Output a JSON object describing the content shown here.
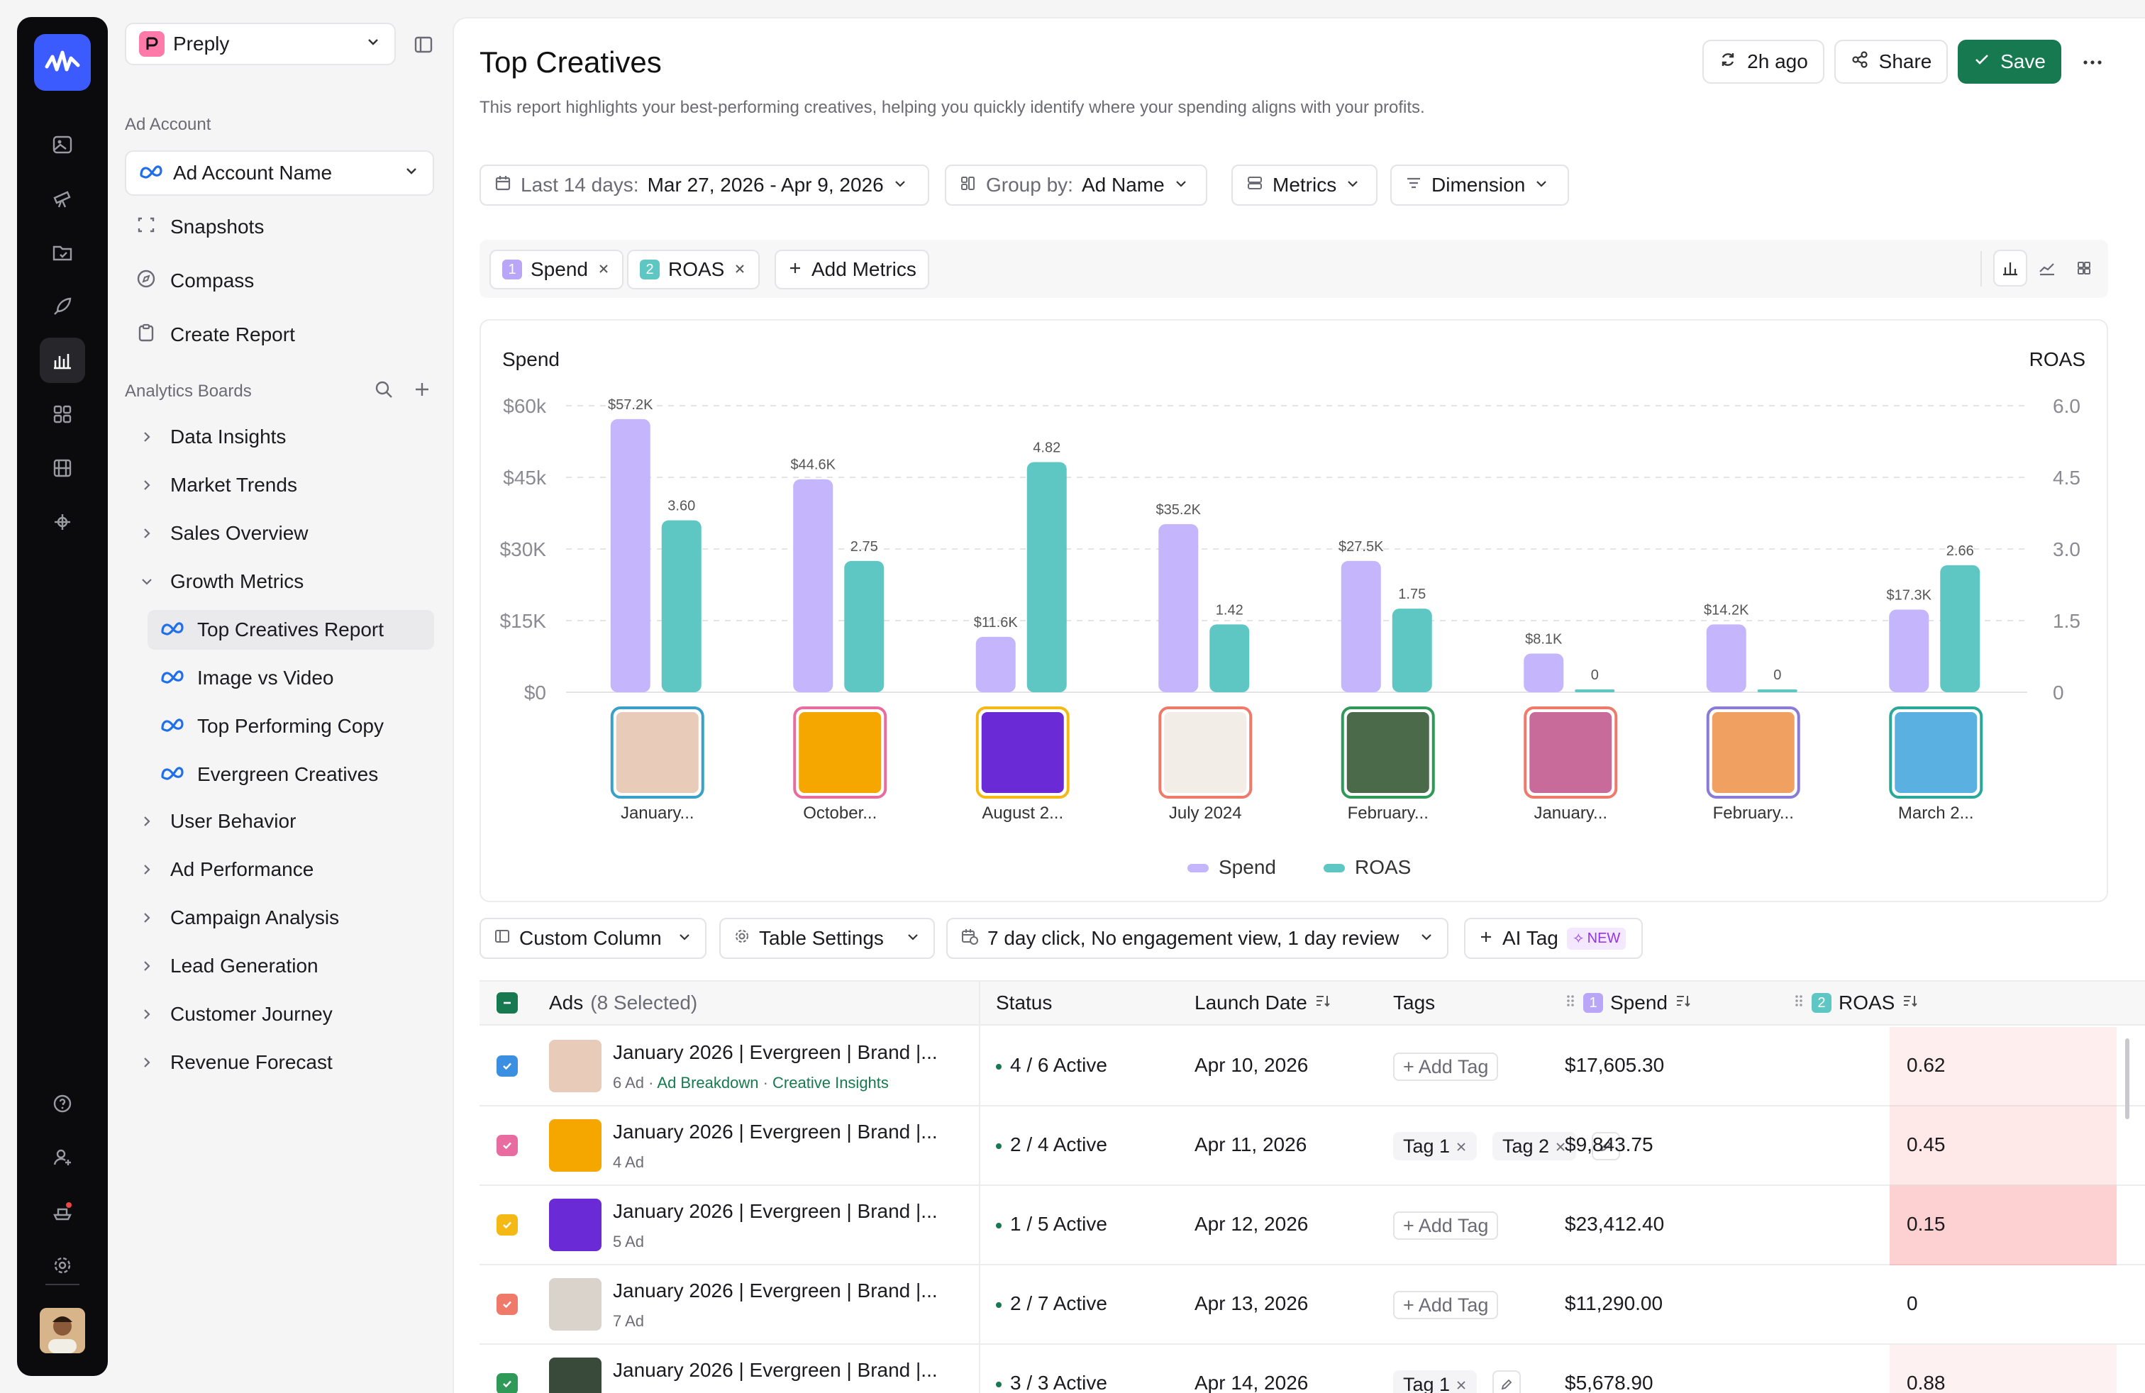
{
  "sidebar": {
    "workspace": "Preply",
    "ad_account_label": "Ad Account",
    "ad_account_value": "Ad Account Name",
    "nav": [
      "Snapshots",
      "Compass",
      "Create Report"
    ],
    "boards_label": "Analytics Boards",
    "boards": [
      "Data Insights",
      "Market Trends",
      "Sales Overview",
      "Growth Metrics"
    ],
    "growth_items": [
      "Top Creatives Report",
      "Image vs Video",
      "Top Performing Copy",
      "Evergreen Creatives"
    ],
    "boards_after": [
      "User Behavior",
      "Ad Performance",
      "Campaign Analysis",
      "Lead Generation",
      "Customer Journey",
      "Revenue Forecast"
    ]
  },
  "header": {
    "title": "Top Creatives",
    "description": "This report highlights your best-performing creatives, helping you quickly identify where your spending aligns with your profits.",
    "refresh": "2h ago",
    "share": "Share",
    "save": "Save"
  },
  "filters": {
    "date_label": "Last 14 days:",
    "date_value": "Mar 27, 2026 - Apr 9, 2026",
    "group_label": "Group by:",
    "group_value": "Ad Name",
    "metrics": "Metrics",
    "dimension": "Dimension"
  },
  "metric_chips": [
    {
      "n": "1",
      "label": "Spend"
    },
    {
      "n": "2",
      "label": "ROAS"
    }
  ],
  "add_metrics": "Add Metrics",
  "colors": {
    "spend": "#c4b5fd",
    "roas": "#5ec7c4",
    "accent": "#16794f"
  },
  "chart_data": {
    "type": "bar",
    "ylabel": "Spend",
    "y2label": "ROAS",
    "y_ticks": [
      "$60k",
      "$45k",
      "$30K",
      "$15K",
      "$0"
    ],
    "y2_ticks": [
      "6.0",
      "4.5",
      "3.0",
      "1.5",
      "0"
    ],
    "ylim": [
      0,
      60000
    ],
    "y2lim": [
      0,
      6
    ],
    "categories": [
      "January...",
      "October...",
      "August 2...",
      "July 2024",
      "February...",
      "January...",
      "February...",
      "March 2..."
    ],
    "series": [
      {
        "name": "Spend",
        "values": [
          57200,
          44600,
          11600,
          35200,
          27500,
          8100,
          14200,
          17300
        ],
        "labels": [
          "$57.2K",
          "$44.6K",
          "$11.6K",
          "$35.2K",
          "$27.5K",
          "$8.1K",
          "$14.2K",
          "$17.3K"
        ]
      },
      {
        "name": "ROAS",
        "values": [
          3.6,
          2.75,
          4.82,
          1.42,
          1.75,
          0,
          0,
          2.66
        ],
        "labels": [
          "3.60",
          "2.75",
          "4.82",
          "1.42",
          "1.75",
          "0",
          "0",
          "2.66"
        ]
      }
    ],
    "legend": "bottom-center"
  },
  "table_toolbar": {
    "custom_column": "Custom Column",
    "table_settings": "Table Settings",
    "attribution": "7 day click, No engagement view, 1 day review",
    "ai_tag": "AI Tag",
    "new_badge": "NEW"
  },
  "table": {
    "headers": {
      "ads": "Ads",
      "selected": "(8 Selected)",
      "status": "Status",
      "launch": "Launch Date",
      "tags": "Tags",
      "spend": "Spend",
      "roas": "ROAS",
      "spend_n": "1",
      "roas_n": "2"
    },
    "add_tag": "+ Add Tag",
    "rows": [
      {
        "title": "January 2026 | Evergreen | Brand |...",
        "sub": "6 Ad",
        "status": "4 / 6 Active",
        "launch": "Apr 10, 2026",
        "spend": "$17,605.30",
        "roas": "0.62",
        "cb": "#3b8fe0",
        "thumb": "#e8cbb8",
        "tags": []
      },
      {
        "title": "January 2026 | Evergreen | Brand |...",
        "sub": "4 Ad",
        "status": "2 / 4 Active",
        "launch": "Apr 11, 2026",
        "spend": "$9,843.75",
        "roas": "0.45",
        "cb": "#e86ca0",
        "thumb": "#f5a700",
        "tags": [
          "Tag 1",
          "Tag 2"
        ]
      },
      {
        "title": "January 2026 | Evergreen | Brand |...",
        "sub": "5 Ad",
        "status": "1 / 5 Active",
        "launch": "Apr 12, 2026",
        "spend": "$23,412.40",
        "roas": "0.15",
        "cb": "#f5b915",
        "thumb": "#6a2bd6",
        "tags": []
      },
      {
        "title": "January 2026 | Evergreen | Brand |...",
        "sub": "7 Ad",
        "status": "2 / 7 Active",
        "launch": "Apr 13, 2026",
        "spend": "$11,290.00",
        "roas": "0",
        "cb": "#f07a6a",
        "thumb": "#d9d3cc",
        "tags": []
      },
      {
        "title": "January 2026 | Evergreen | Brand |...",
        "sub": "",
        "status": "3 / 3 Active",
        "launch": "Apr 14, 2026",
        "spend": "$5,678.90",
        "roas": "0.88",
        "cb": "#2f9a57",
        "thumb": "#3a4a3a",
        "tags": [
          "Tag 1"
        ]
      }
    ],
    "row0_links": [
      "Ad Breakdown",
      "Creative Insights"
    ]
  }
}
